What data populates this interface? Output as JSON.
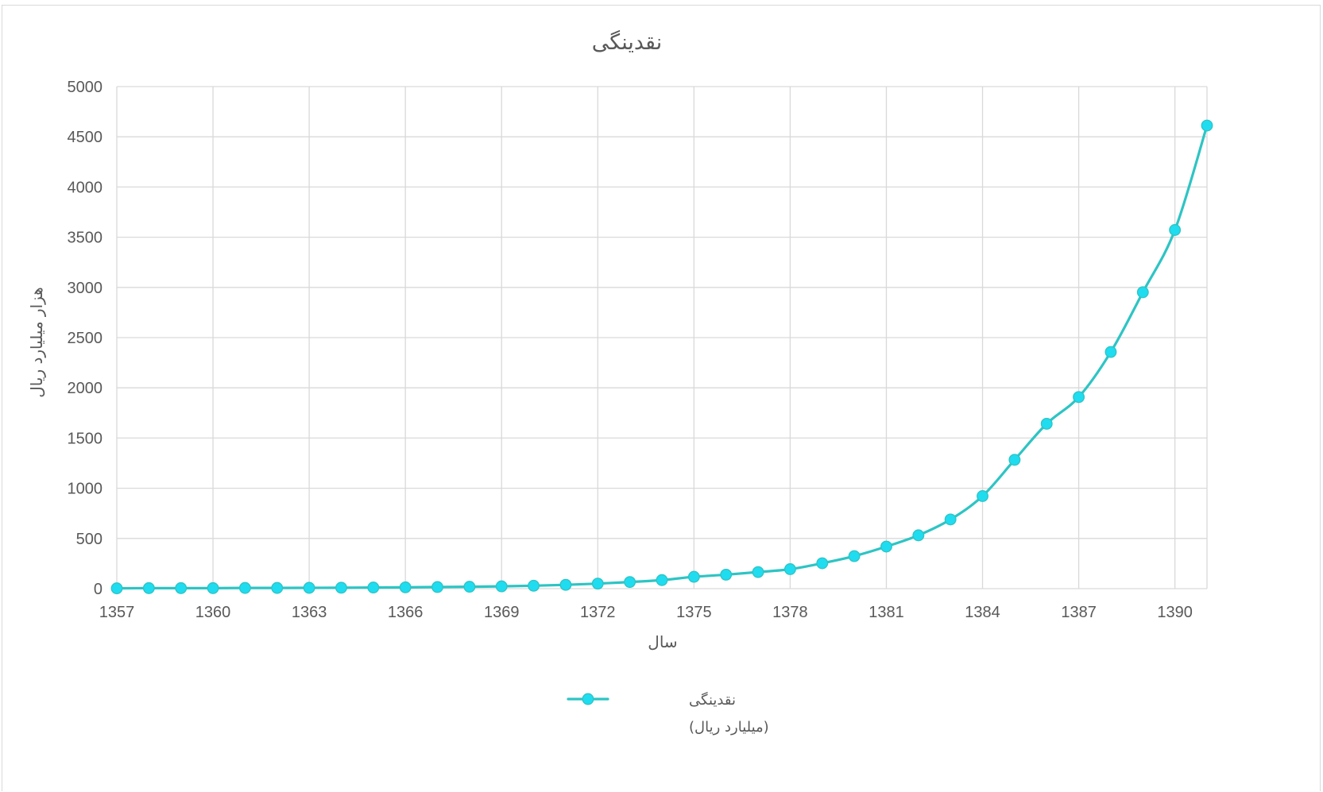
{
  "chart_data": {
    "type": "line",
    "title": "نقدینگی",
    "xlabel": "سال",
    "ylabel": "هزار میلیارد ریال",
    "x": [
      1357,
      1358,
      1359,
      1360,
      1361,
      1362,
      1363,
      1364,
      1365,
      1366,
      1367,
      1368,
      1369,
      1370,
      1371,
      1372,
      1373,
      1374,
      1375,
      1376,
      1377,
      1378,
      1379,
      1380,
      1381,
      1382,
      1383,
      1384,
      1385,
      1386,
      1387,
      1388,
      1389,
      1390,
      1391
    ],
    "series": [
      {
        "name": "نقدینگی (میلیارد ریال)",
        "legend_line1": "نقدینگی",
        "legend_line2": "(میلیارد ریال)",
        "color": "#2ec4c4",
        "marker_color": "#1fdcf0",
        "values": [
          3,
          5,
          5,
          5,
          7,
          7,
          8,
          9,
          11,
          13,
          16,
          19,
          23,
          29,
          38,
          50,
          66,
          85,
          118,
          139,
          165,
          194,
          253,
          324,
          419,
          531,
          689,
          922,
          1283,
          1642,
          1908,
          2357,
          2952,
          3572,
          4612
        ]
      }
    ],
    "xticks": [
      "1357",
      "1360",
      "1363",
      "1366",
      "1369",
      "1372",
      "1375",
      "1378",
      "1381",
      "1384",
      "1387",
      "1390"
    ],
    "yticks": [
      "0",
      "500",
      "1000",
      "1500",
      "2000",
      "2500",
      "3000",
      "3500",
      "4000",
      "4500",
      "5000"
    ],
    "xlim": [
      1357,
      1391
    ],
    "ylim": [
      0,
      5000
    ],
    "grid": true,
    "legend_position": "bottom"
  }
}
